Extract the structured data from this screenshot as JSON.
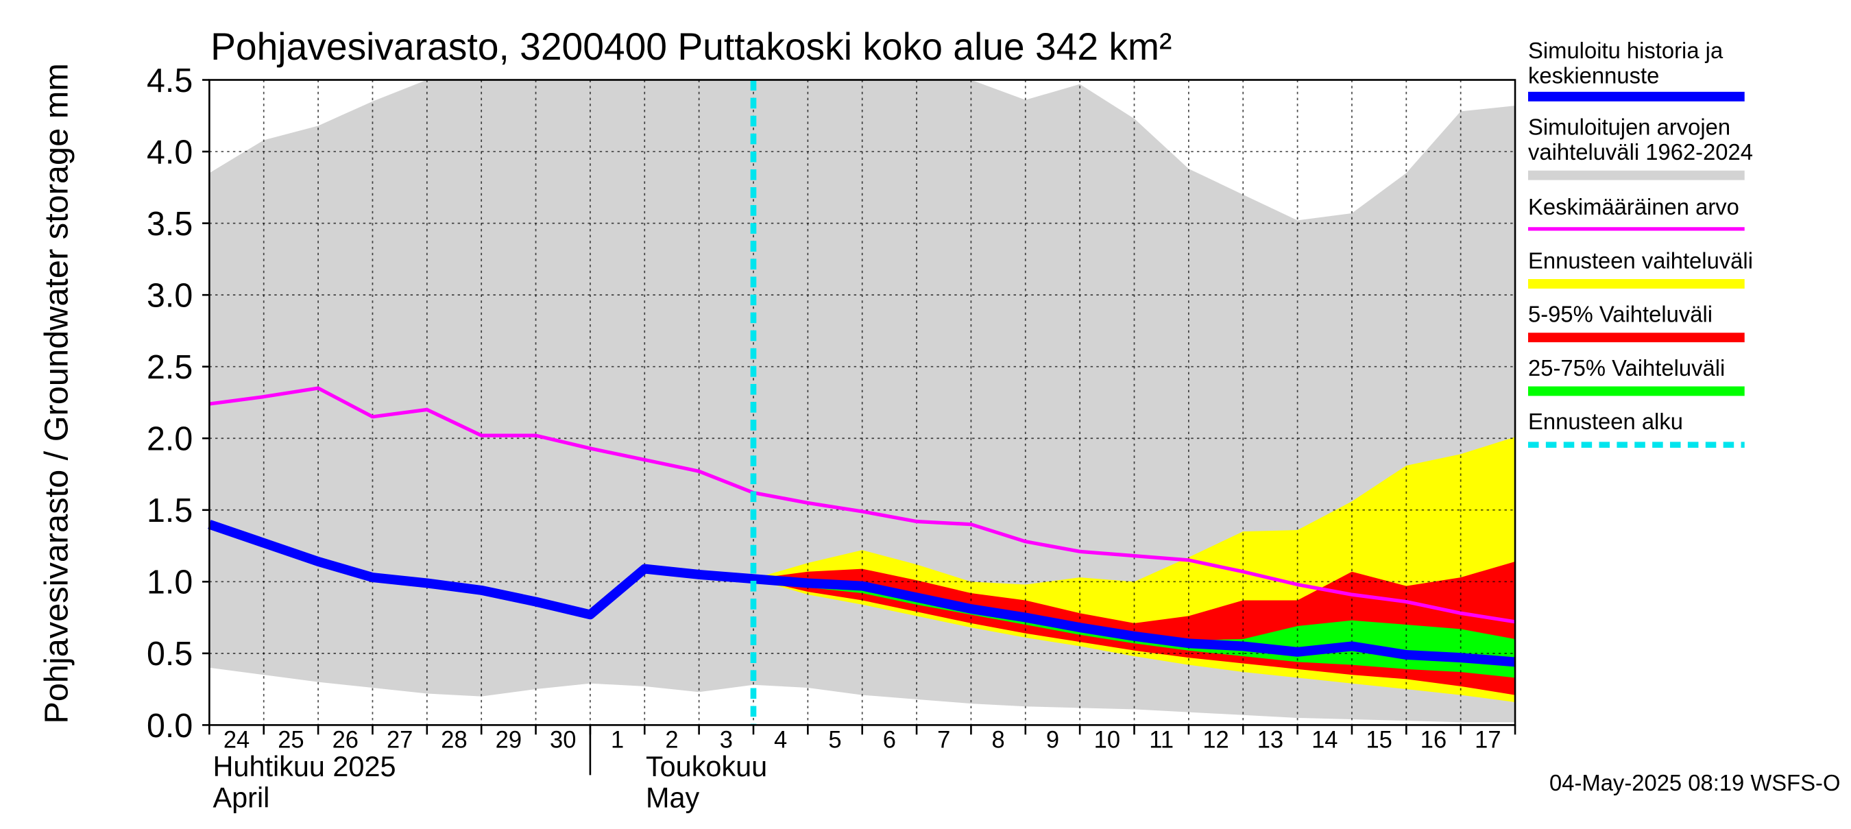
{
  "chart_data": {
    "type": "area",
    "title": "Pohjavesivarasto, 3200400 Puttakoski koko alue 342 km²",
    "ylabel": "Pohjavesivarasto / Groundwater storage   mm",
    "ylim": [
      0.0,
      4.5
    ],
    "yticks": [
      "0.0",
      "0.5",
      "1.0",
      "1.5",
      "2.0",
      "2.5",
      "3.0",
      "3.5",
      "4.0",
      "4.5"
    ],
    "x_day_labels": [
      "24",
      "25",
      "26",
      "27",
      "28",
      "29",
      "30",
      "1",
      "2",
      "3",
      "4",
      "5",
      "6",
      "7",
      "8",
      "9",
      "10",
      "11",
      "12",
      "13",
      "14",
      "15",
      "16",
      "17"
    ],
    "month_labels": [
      {
        "fi": "Huhtikuu  2025",
        "en": "April"
      },
      {
        "fi": "Toukokuu",
        "en": "May"
      }
    ],
    "x_range_days": [
      0,
      24
    ],
    "month_boundary_day": 7,
    "forecast_start_day": 10,
    "timestamp": "04-May-2025 08:19 WSFS-O",
    "legend": [
      {
        "label": "Simuloitu historia ja keskiennuste",
        "color": "#0000ff"
      },
      {
        "label": "Simuloitujen arvojen vaihteluväli 1962-2024",
        "color": "#d3d3d3"
      },
      {
        "label": "Keskimääräinen arvo",
        "color": "#ff00ff"
      },
      {
        "label": "Ennusteen vaihteluväli",
        "color": "#ffff00"
      },
      {
        "label": "5-95% Vaihteluväli",
        "color": "#ff0000"
      },
      {
        "label": "25-75% Vaihteluväli",
        "color": "#00ff00"
      },
      {
        "label": "Ennusteen alku",
        "color": "#00e5ee"
      }
    ],
    "series": {
      "historical_range": {
        "x": [
          0,
          1,
          2,
          3,
          4,
          5,
          6,
          7,
          8,
          9,
          10,
          11,
          12,
          13,
          14,
          15,
          16,
          17,
          18,
          19,
          20,
          21,
          22,
          23,
          24
        ],
        "upper": [
          3.85,
          4.08,
          4.18,
          4.35,
          4.5,
          4.5,
          4.5,
          4.5,
          4.5,
          4.5,
          4.5,
          4.5,
          4.5,
          4.5,
          4.5,
          4.36,
          4.47,
          4.23,
          3.88,
          3.7,
          3.52,
          3.57,
          3.85,
          4.28,
          4.32
        ],
        "lower": [
          0.4,
          0.35,
          0.3,
          0.26,
          0.22,
          0.2,
          0.25,
          0.29,
          0.27,
          0.23,
          0.28,
          0.26,
          0.21,
          0.18,
          0.15,
          0.13,
          0.12,
          0.11,
          0.09,
          0.07,
          0.05,
          0.04,
          0.03,
          0.02,
          0.02
        ]
      },
      "mean": {
        "x": [
          0,
          1,
          2,
          3,
          4,
          5,
          6,
          7,
          8,
          9,
          10,
          11,
          12,
          13,
          14,
          15,
          16,
          17,
          18,
          19,
          20,
          21,
          22,
          23,
          24
        ],
        "values": [
          2.24,
          2.29,
          2.35,
          2.15,
          2.2,
          2.02,
          2.02,
          1.93,
          1.85,
          1.77,
          1.62,
          1.55,
          1.49,
          1.42,
          1.4,
          1.28,
          1.21,
          1.18,
          1.15,
          1.07,
          0.98,
          0.91,
          0.86,
          0.78,
          0.72
        ]
      },
      "simulated": {
        "x": [
          0,
          1,
          2,
          3,
          4,
          5,
          6,
          7,
          8,
          9,
          10,
          11,
          12,
          13,
          14,
          15,
          16,
          17,
          18,
          19,
          20,
          21,
          22,
          23,
          24
        ],
        "values": [
          1.4,
          1.27,
          1.14,
          1.03,
          0.99,
          0.94,
          0.86,
          0.77,
          1.09,
          1.05,
          1.02,
          0.99,
          0.97,
          0.89,
          0.81,
          0.75,
          0.68,
          0.62,
          0.57,
          0.55,
          0.51,
          0.55,
          0.49,
          0.47,
          0.44
        ]
      },
      "forecast_x": [
        10,
        11,
        12,
        13,
        14,
        15,
        16,
        17,
        18,
        19,
        20,
        21,
        22,
        23,
        24
      ],
      "forecast_range": {
        "upper": [
          1.02,
          1.13,
          1.22,
          1.12,
          1.0,
          0.98,
          1.03,
          1.0,
          1.17,
          1.35,
          1.36,
          1.56,
          1.81,
          1.89,
          2.01
        ],
        "lower": [
          1.02,
          0.91,
          0.84,
          0.76,
          0.68,
          0.61,
          0.55,
          0.48,
          0.42,
          0.37,
          0.33,
          0.29,
          0.25,
          0.21,
          0.16
        ]
      },
      "p5_95": {
        "upper": [
          1.02,
          1.07,
          1.09,
          1.01,
          0.92,
          0.87,
          0.78,
          0.71,
          0.76,
          0.87,
          0.87,
          1.07,
          0.97,
          1.03,
          1.14
        ],
        "lower": [
          1.02,
          0.93,
          0.87,
          0.79,
          0.71,
          0.64,
          0.58,
          0.52,
          0.47,
          0.43,
          0.39,
          0.35,
          0.32,
          0.27,
          0.21
        ]
      },
      "p25_75": {
        "upper": [
          1.02,
          1.01,
          0.99,
          0.91,
          0.83,
          0.77,
          0.71,
          0.64,
          0.59,
          0.6,
          0.69,
          0.73,
          0.7,
          0.67,
          0.6
        ],
        "lower": [
          1.02,
          0.96,
          0.92,
          0.84,
          0.77,
          0.7,
          0.63,
          0.57,
          0.52,
          0.48,
          0.44,
          0.42,
          0.39,
          0.37,
          0.33
        ]
      }
    }
  }
}
